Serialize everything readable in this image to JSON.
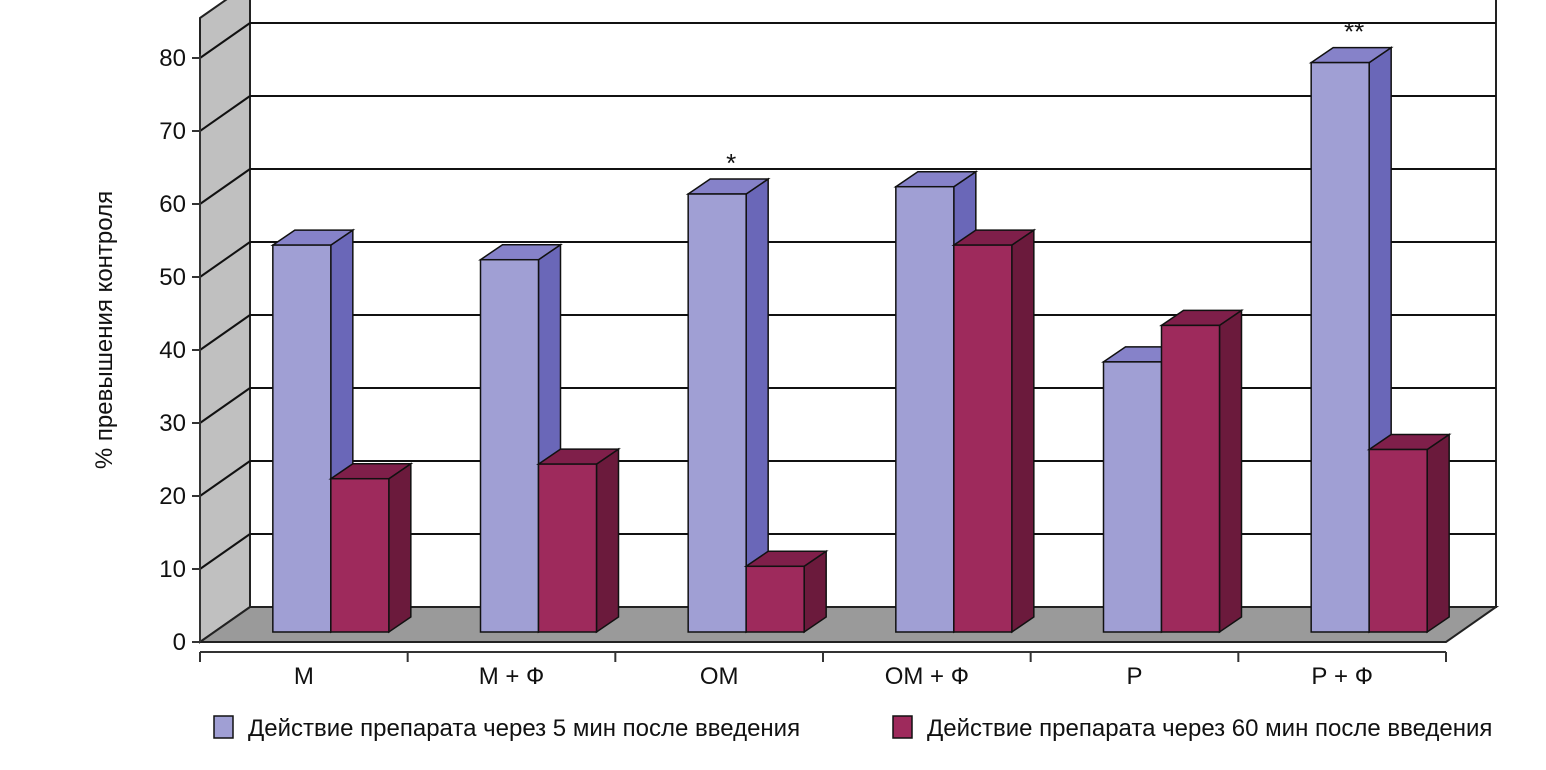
{
  "chart_data": {
    "type": "bar",
    "ylabel": "% превышения контроля",
    "xlabel": "",
    "title": "",
    "ylim": [
      0,
      80
    ],
    "yticks": [
      0,
      10,
      20,
      30,
      40,
      50,
      60,
      70,
      80
    ],
    "grid": true,
    "legend_position": "bottom",
    "categories": [
      "М",
      "М + Ф",
      "ОМ",
      "ОМ + Ф",
      "Р",
      "Р + Ф"
    ],
    "series": [
      {
        "name": "Действие препарата через 5 мин после введения",
        "values": [
          53,
          51,
          60,
          61,
          37,
          78
        ],
        "color": "#a09fd4",
        "side_color": "#6a67b8",
        "top_color": "#8682c9"
      },
      {
        "name": "Действие препарата через 60 мин после введения",
        "values": [
          21,
          23,
          9,
          53,
          42,
          25
        ],
        "color": "#9e2a5c",
        "side_color": "#6b1a3c",
        "top_color": "#7f1f4a"
      }
    ],
    "annotations": [
      {
        "category": "ОМ",
        "series": 0,
        "text": "*"
      },
      {
        "category": "Р + Ф",
        "series": 0,
        "text": "**"
      }
    ]
  }
}
